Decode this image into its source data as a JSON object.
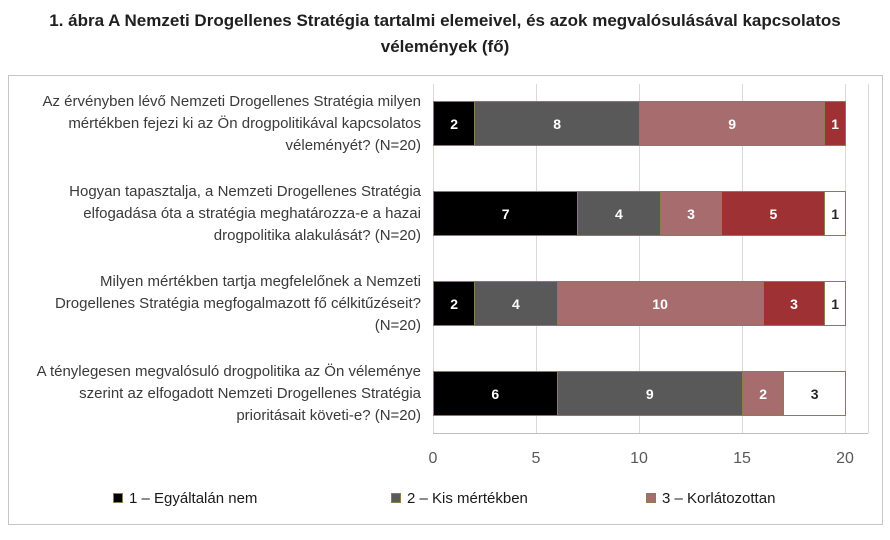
{
  "title": {
    "line1": "1. ábra A Nemzeti Drogellenes Stratégia tartalmi elemeivel, és azok megvalósulásával kapcsolatos",
    "line2": "vélemények (fő)"
  },
  "chart_data": {
    "type": "bar",
    "orientation": "horizontal",
    "stacked": true,
    "title": "1. ábra A Nemzeti Drogellenes Stratégia tartalmi elemeivel, és azok megvalósulásával kapcsolatos vélemények (fő)",
    "categories": [
      "Az érvényben lévő Nemzeti Drogellenes Stratégia milyen mértékben fejezi ki az Ön drogpolitikával kapcsolatos véleményét? (N=20)",
      "Hogyan tapasztalja, a Nemzeti Drogellenes Stratégia elfogadása óta a stratégia meghatározza-e a hazai drogpolitika alakulását? (N=20)",
      "Milyen mértékben tartja megfelelőnek a Nemzeti Drogellenes Stratégia megfogalmazott fő célkitűzéseit? (N=20)",
      "A ténylegesen megvalósuló drogpolitika az Ön véleménye szerint az elfogadott Nemzeti Drogellenes Stratégia prioritásait követi-e? (N=20)"
    ],
    "series": [
      {
        "name": "1 – Egyáltalán nem",
        "color": "#000000",
        "label_color": "#ffffff",
        "values": [
          2,
          7,
          2,
          6
        ]
      },
      {
        "name": "2 – Kis mértékben",
        "color": "#595959",
        "label_color": "#ffffff",
        "values": [
          8,
          4,
          4,
          9
        ]
      },
      {
        "name": "3 – Korlátozottan",
        "color": "#a76d6e",
        "label_color": "#ffffff",
        "values": [
          9,
          3,
          10,
          2
        ]
      },
      {
        "name": "",
        "color": "#9e3134",
        "label_color": "#ffffff",
        "values": [
          1,
          5,
          3,
          0
        ]
      },
      {
        "name": "",
        "color": "#ffffff",
        "label_color": "#262626",
        "values": [
          0,
          1,
          1,
          3
        ]
      }
    ],
    "xlabel": "",
    "ylabel": "",
    "x_ticks": [
      0,
      5,
      10,
      15,
      20
    ],
    "xlim": [
      0,
      21.1
    ],
    "grid": true,
    "legend": [
      "1 – Egyáltalán nem",
      "2 – Kis mértékben",
      "3 – Korlátozottan"
    ],
    "legend_position": "bottom"
  },
  "colors": {
    "segment_border": "#8b7d4e",
    "gridline": "#d9d9d9",
    "axis_line": "#bfbfbf",
    "chart_border": "#c6c6c6",
    "tick_label": "#595959",
    "category_label": "#3a3a3a",
    "title": "#1f1f1f"
  }
}
